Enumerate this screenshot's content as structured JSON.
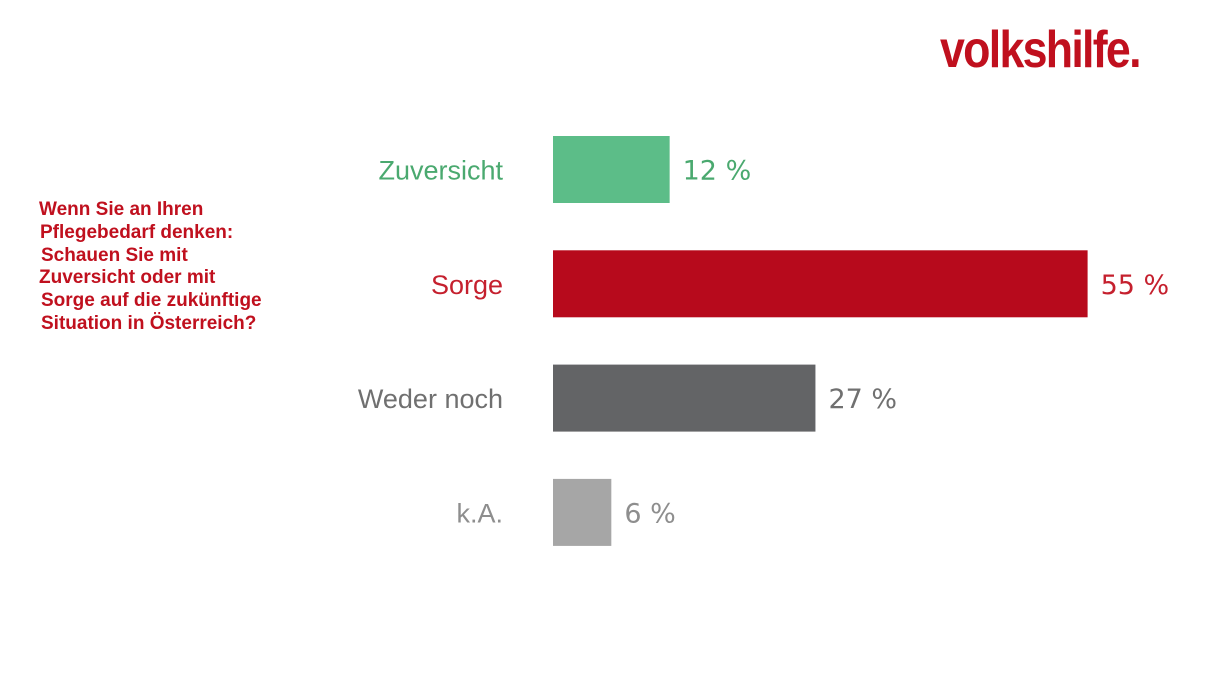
{
  "logo": {
    "text": "volkshilfe.",
    "color": "#c0101e"
  },
  "question": {
    "lines": [
      "Wenn Sie an Ihren",
      "Pflegebedarf denken:",
      "Schauen Sie mit",
      "Zuversicht oder mit",
      "Sorge auf die zukünftige",
      "Situation in Österreich?"
    ],
    "color": "#c0101e"
  },
  "chart_data": {
    "type": "bar",
    "orientation": "horizontal",
    "categories": [
      "Zuversicht",
      "Sorge",
      "Weder noch",
      "k.A."
    ],
    "values": [
      12,
      55,
      27,
      6
    ],
    "value_labels": [
      "12 %",
      "55 %",
      "27 %",
      "6 %"
    ],
    "unit": "%",
    "colors": [
      "#5cbd88",
      "#b70a1c",
      "#636466",
      "#a6a6a6"
    ],
    "label_colors": [
      "#4aa96f",
      "#c5202e",
      "#707070",
      "#8e8e8e"
    ],
    "grid": false,
    "legend": "none"
  }
}
